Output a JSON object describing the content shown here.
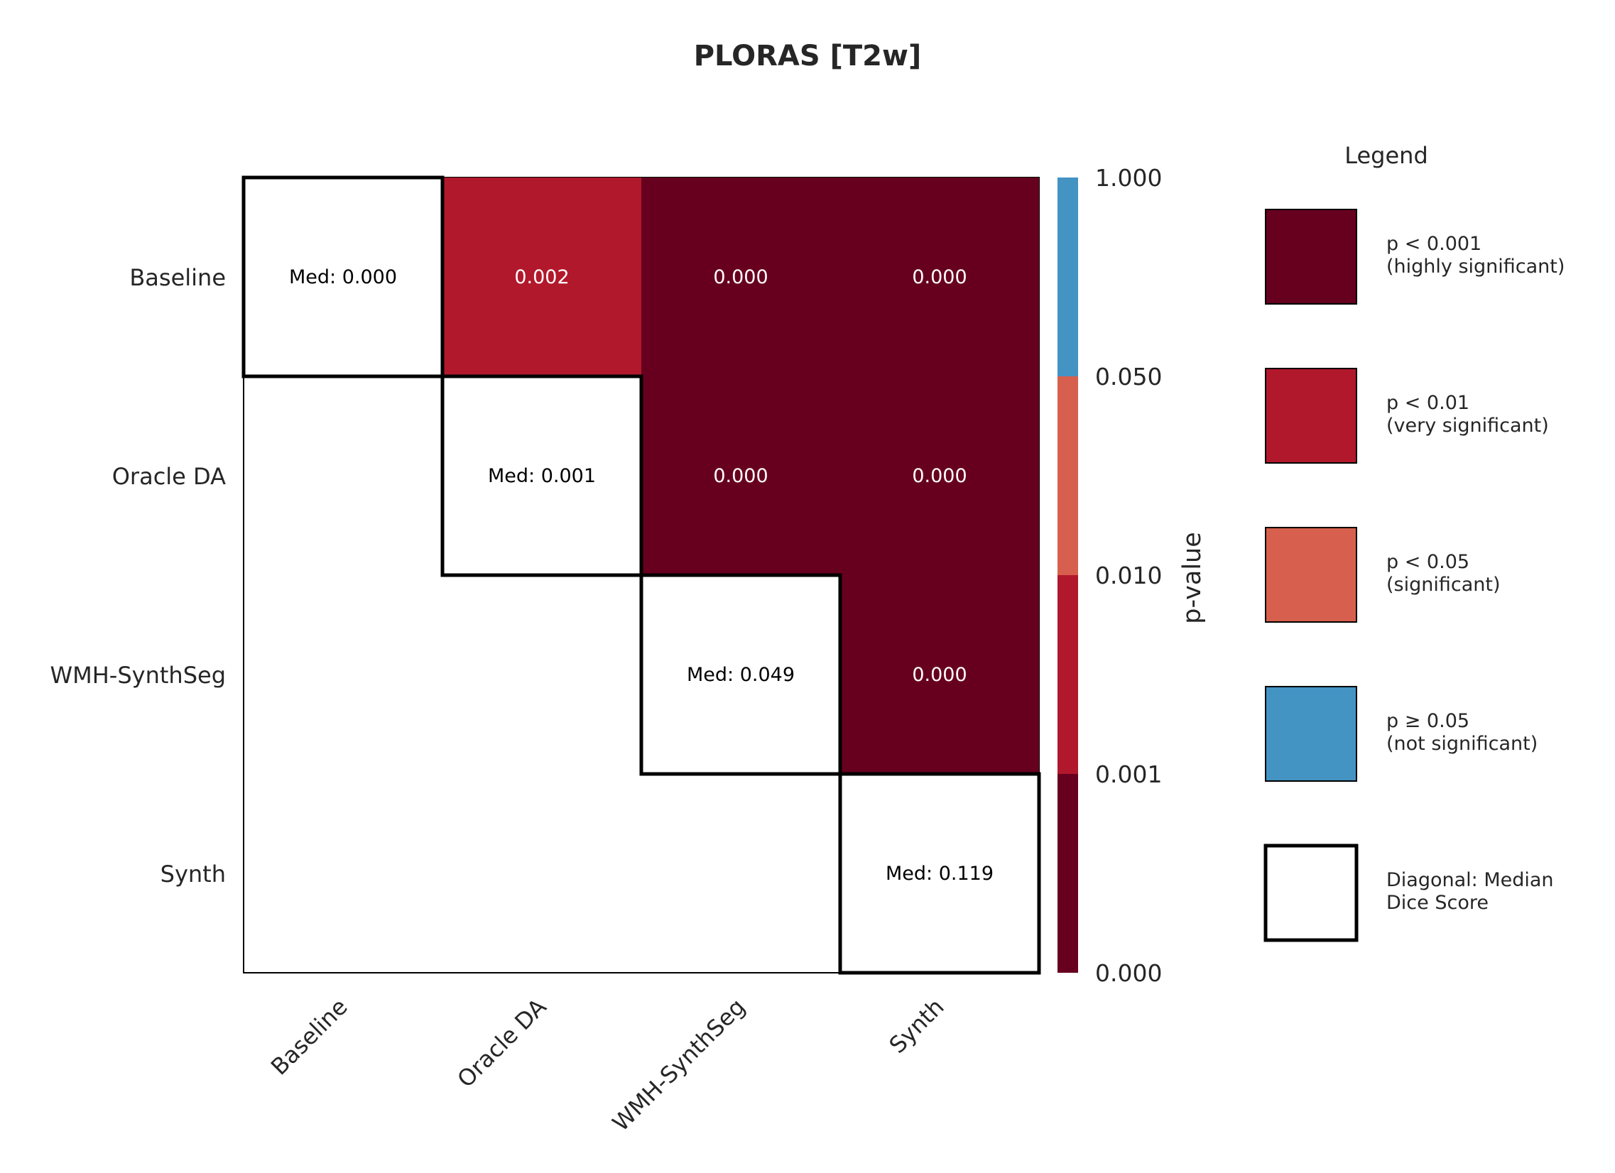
{
  "chart_data": {
    "type": "heatmap",
    "title": "PLORAS [T2w]",
    "rows": [
      "Baseline",
      "Oracle DA",
      "WMH-SynthSeg",
      "Synth"
    ],
    "columns": [
      "Baseline",
      "Oracle DA",
      "WMH-SynthSeg",
      "Synth"
    ],
    "p_values": [
      [
        null,
        0.002,
        0.0,
        0.0
      ],
      [
        null,
        null,
        0.0,
        0.0
      ],
      [
        null,
        null,
        null,
        0.0
      ],
      [
        null,
        null,
        null,
        null
      ]
    ],
    "p_value_labels": [
      [
        null,
        "0.002",
        "0.000",
        "0.000"
      ],
      [
        null,
        null,
        "0.000",
        "0.000"
      ],
      [
        null,
        null,
        null,
        "0.000"
      ],
      [
        null,
        null,
        null,
        null
      ]
    ],
    "diagonal_medians": [
      0.0,
      0.001,
      0.049,
      0.119
    ],
    "diagonal_labels": [
      "Med: 0.000",
      "Med: 0.001",
      "Med: 0.049",
      "Med: 0.119"
    ],
    "colorbar": {
      "label": "p-value",
      "tick_labels": [
        "1.000",
        "0.050",
        "0.010",
        "0.001",
        "0.000"
      ],
      "bins": [
        {
          "from": 0.0,
          "to": 0.001,
          "color": "#67001f"
        },
        {
          "from": 0.001,
          "to": 0.01,
          "color": "#b2182b"
        },
        {
          "from": 0.01,
          "to": 0.05,
          "color": "#d6604d"
        },
        {
          "from": 0.05,
          "to": 1.0,
          "color": "#4393c3"
        }
      ]
    },
    "legend": {
      "title": "Legend",
      "position": "right",
      "items": [
        {
          "color": "#67001f",
          "lines": [
            "p < 0.001",
            "(highly significant)"
          ]
        },
        {
          "color": "#b2182b",
          "lines": [
            "p < 0.01",
            "(very significant)"
          ]
        },
        {
          "color": "#d6604d",
          "lines": [
            "p < 0.05",
            "(significant)"
          ]
        },
        {
          "color": "#4393c3",
          "lines": [
            "p ≥ 0.05",
            "(not significant)"
          ]
        },
        {
          "color": "#ffffff",
          "lines": [
            "Diagonal: Median",
            "Dice Score"
          ]
        }
      ]
    }
  }
}
